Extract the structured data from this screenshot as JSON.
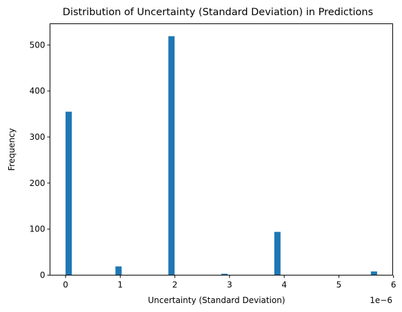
{
  "chart_data": {
    "type": "bar",
    "title": "Distribution of Uncertainty (Standard Deviation) in Predictions",
    "xlabel": "Uncertainty (Standard Deviation)",
    "ylabel": "Frequency",
    "x_offset_label": "1e−6",
    "x_scale": 1e-06,
    "xlim": [
      -0.285,
      5.985
    ],
    "ylim": [
      0,
      546
    ],
    "xticks": [
      0,
      1,
      2,
      3,
      4,
      5,
      6
    ],
    "xtick_labels": [
      "0",
      "1",
      "2",
      "3",
      "4",
      "5",
      "6"
    ],
    "yticks": [
      0,
      100,
      200,
      300,
      400,
      500
    ],
    "ytick_labels": [
      "0",
      "100",
      "200",
      "300",
      "400",
      "500"
    ],
    "bin_width": 0.114,
    "bars": [
      {
        "x_start": 0.0,
        "value": 355
      },
      {
        "x_start": 0.912,
        "value": 19
      },
      {
        "x_start": 1.881,
        "value": 519
      },
      {
        "x_start": 2.85,
        "value": 3
      },
      {
        "x_start": 3.819,
        "value": 94
      },
      {
        "x_start": 5.586,
        "value": 8
      }
    ],
    "grid": false,
    "color": "#1f77b4"
  }
}
